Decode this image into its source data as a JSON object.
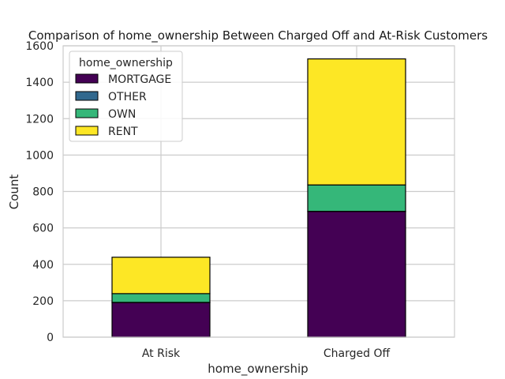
{
  "chart_data": {
    "type": "bar",
    "stacked": true,
    "title": "Comparison of home_ownership Between Charged Off and At-Risk Customers",
    "xlabel": "home_ownership",
    "ylabel": "Count",
    "categories": [
      "At Risk",
      "Charged Off"
    ],
    "ylim": [
      0,
      1600
    ],
    "yticks": [
      "0",
      "200",
      "400",
      "600",
      "800",
      "1000",
      "1200",
      "1400",
      "1600"
    ],
    "grid": true,
    "legend": {
      "title": "home_ownership",
      "position": "top-left"
    },
    "series": [
      {
        "name": "MORTGAGE",
        "color": "#440154",
        "values": [
          190,
          690
        ]
      },
      {
        "name": "OTHER",
        "color": "#31688e",
        "values": [
          1,
          1
        ]
      },
      {
        "name": "OWN",
        "color": "#35b779",
        "values": [
          48,
          145
        ]
      },
      {
        "name": "RENT",
        "color": "#fde725",
        "values": [
          200,
          692
        ]
      }
    ]
  }
}
